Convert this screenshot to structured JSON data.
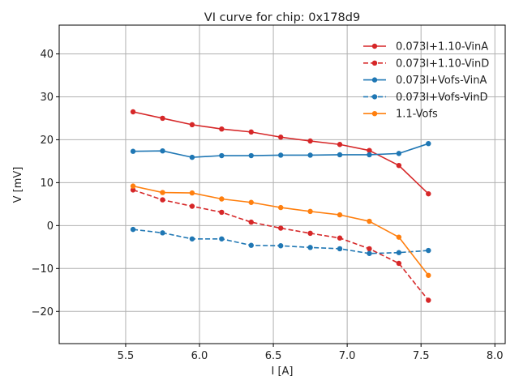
{
  "chart_data": {
    "type": "line",
    "title": "VI curve for chip: 0x178d9",
    "xlabel": "I [A]",
    "ylabel": "V [mV]",
    "xlim": [
      5.05,
      8.07
    ],
    "ylim": [
      -27.5,
      46.7
    ],
    "xticks": [
      5.5,
      6.0,
      6.5,
      7.0,
      7.5,
      8.0
    ],
    "xtick_labels": [
      "5.5",
      "6.0",
      "6.5",
      "7.0",
      "7.5",
      "8.0"
    ],
    "yticks": [
      -20,
      -10,
      0,
      10,
      20,
      30,
      40
    ],
    "ytick_labels": [
      "−20",
      "−10",
      "0",
      "10",
      "20",
      "30",
      "40"
    ],
    "grid": true,
    "legend_position": "top-right",
    "x": [
      5.55,
      5.75,
      5.95,
      6.15,
      6.35,
      6.55,
      6.75,
      6.95,
      7.15,
      7.35,
      7.55
    ],
    "series": [
      {
        "name": "0.073I+1.10-VinA",
        "color": "#d62728",
        "dashed": false,
        "values": [
          26.5,
          25.0,
          23.5,
          22.5,
          21.8,
          20.6,
          19.7,
          18.9,
          17.5,
          14.0,
          7.4
        ]
      },
      {
        "name": "0.073I+1.10-VinD",
        "color": "#d62728",
        "dashed": true,
        "values": [
          8.3,
          6.0,
          4.5,
          3.1,
          0.8,
          -0.6,
          -1.8,
          -2.9,
          -5.4,
          -8.8,
          -17.4
        ]
      },
      {
        "name": "0.073I+Vofs-VinA",
        "color": "#1f77b4",
        "dashed": false,
        "values": [
          17.3,
          17.4,
          15.9,
          16.3,
          16.3,
          16.4,
          16.4,
          16.5,
          16.5,
          16.8,
          19.1
        ]
      },
      {
        "name": "0.073I+Vofs-VinD",
        "color": "#1f77b4",
        "dashed": true,
        "values": [
          -0.9,
          -1.7,
          -3.1,
          -3.1,
          -4.6,
          -4.7,
          -5.1,
          -5.4,
          -6.5,
          -6.3,
          -5.8
        ]
      },
      {
        "name": "1.1-Vofs",
        "color": "#ff7f0e",
        "dashed": false,
        "values": [
          9.2,
          7.7,
          7.6,
          6.2,
          5.4,
          4.2,
          3.3,
          2.5,
          1.0,
          -2.7,
          -11.6
        ]
      }
    ]
  }
}
